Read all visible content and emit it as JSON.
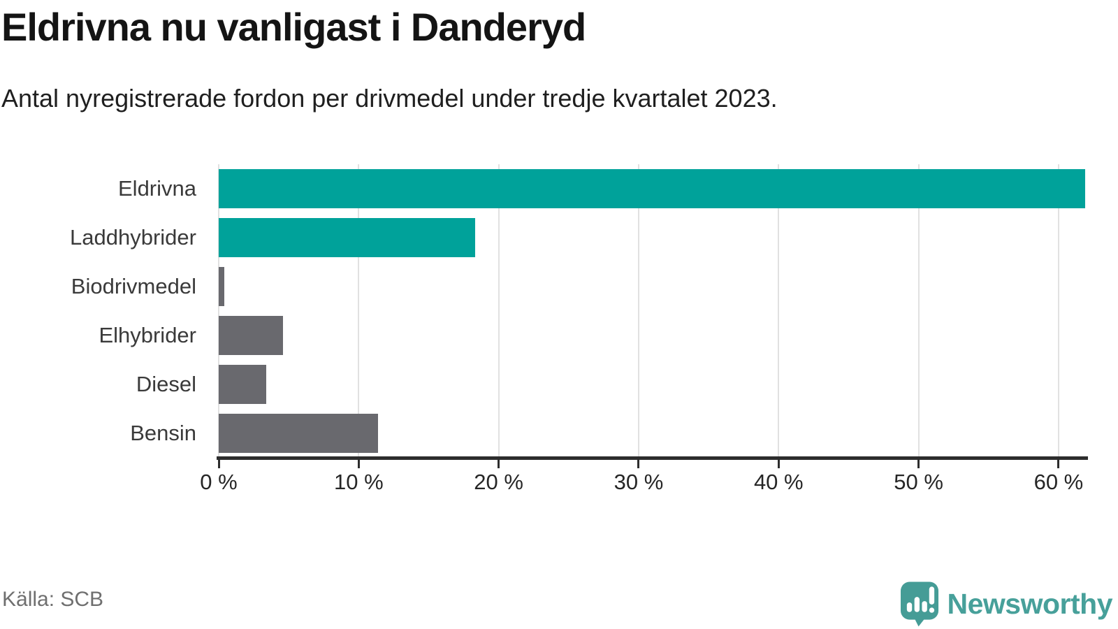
{
  "header": {
    "title": "Eldrivna nu vanligast i Danderyd",
    "subtitle": "Antal nyregistrerade fordon per drivmedel under tredje kvartalet 2023."
  },
  "chart_data": {
    "type": "bar",
    "orientation": "horizontal",
    "title": "Eldrivna nu vanligast i Danderyd",
    "subtitle": "Antal nyregistrerade fordon per drivmedel under tredje kvartalet 2023.",
    "categories": [
      "Eldrivna",
      "Laddhybrider",
      "Biodrivmedel",
      "Elhybrider",
      "Diesel",
      "Bensin"
    ],
    "values": [
      61.9,
      18.3,
      0.4,
      4.6,
      3.4,
      11.4
    ],
    "unit": "%",
    "bar_colors": [
      "#00a29a",
      "#00a29a",
      "#69696e",
      "#69696e",
      "#69696e",
      "#69696e"
    ],
    "xlim": [
      0,
      62
    ],
    "xticks": [
      0,
      10,
      20,
      30,
      40,
      50,
      60
    ],
    "xtick_suffix": " %",
    "grid": true,
    "legend_position": "none"
  },
  "colors": {
    "accent_teal": "#00a29a",
    "bar_gray": "#69696e",
    "axis_line": "#2d2d2d",
    "gridline": "#e1e1e1",
    "logo_teal": "#459c96"
  },
  "footer": {
    "source": "Källa: SCB",
    "logo_text": "Newsworthy"
  }
}
